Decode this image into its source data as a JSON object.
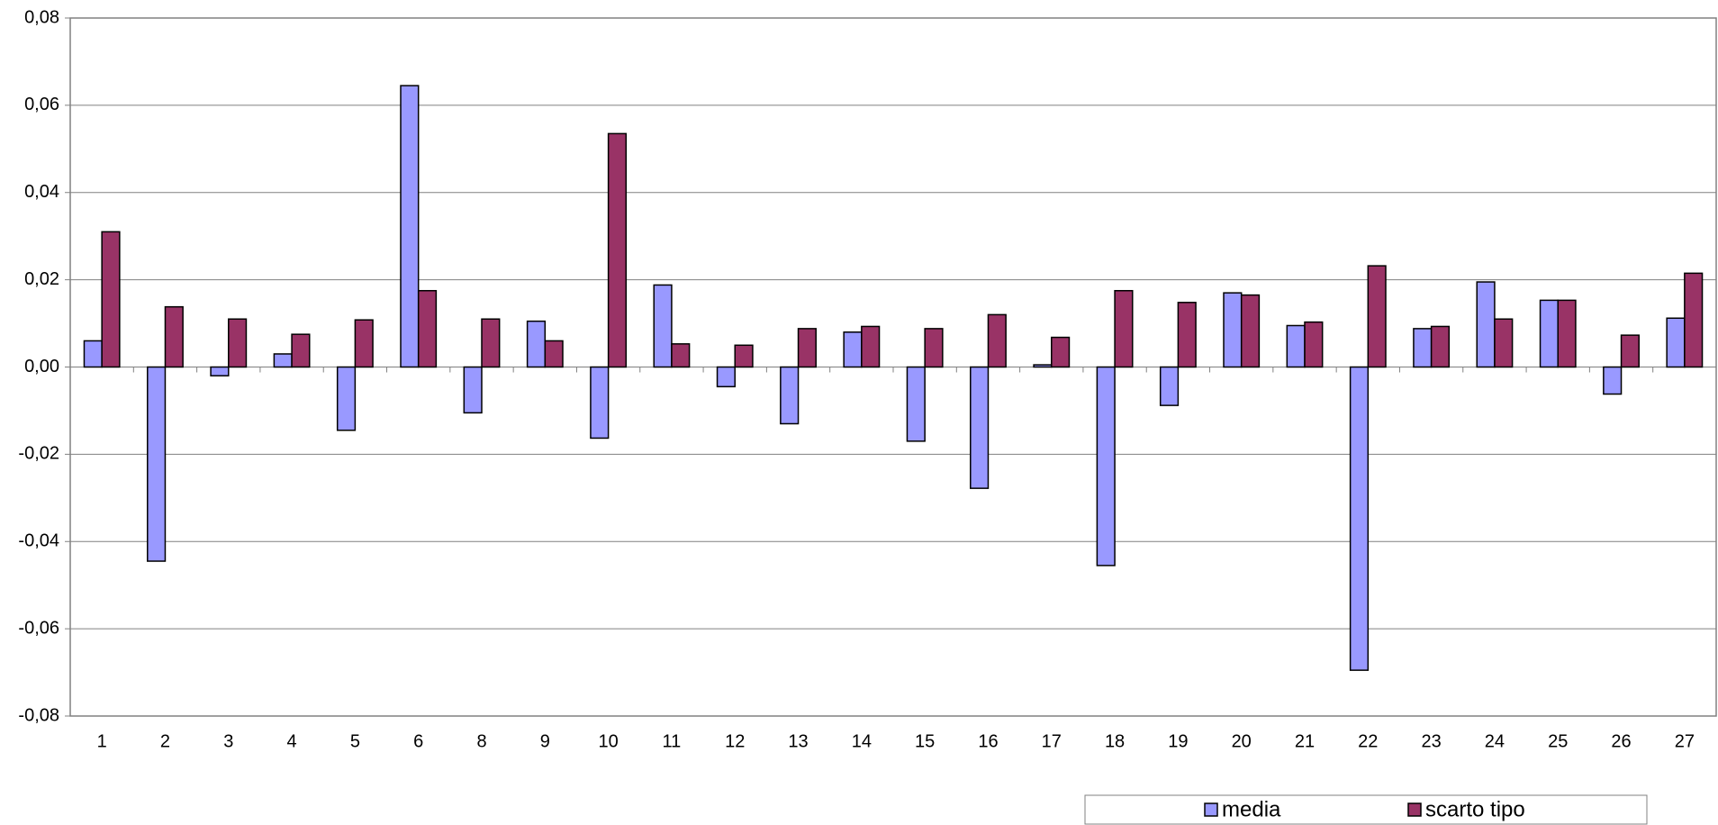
{
  "chart_data": {
    "type": "bar",
    "categories": [
      "1",
      "2",
      "3",
      "4",
      "5",
      "6",
      "8",
      "9",
      "10",
      "11",
      "12",
      "13",
      "14",
      "15",
      "16",
      "17",
      "18",
      "19",
      "20",
      "21",
      "22",
      "23",
      "24",
      "25",
      "26",
      "27"
    ],
    "series": [
      {
        "name": "media",
        "color": "#9999ff",
        "values": [
          0.006,
          -0.0445,
          -0.002,
          0.003,
          -0.0145,
          0.0645,
          -0.0105,
          0.0105,
          -0.0163,
          0.0188,
          -0.0045,
          -0.013,
          0.008,
          -0.017,
          -0.0278,
          0.0005,
          -0.0455,
          -0.0088,
          0.017,
          0.0095,
          -0.0695,
          0.0088,
          0.0195,
          0.0153,
          -0.0062,
          0.0112
        ]
      },
      {
        "name": "scarto tipo",
        "color": "#993366",
        "values": [
          0.031,
          0.0138,
          0.011,
          0.0075,
          0.0108,
          0.0175,
          0.011,
          0.006,
          0.0535,
          0.0053,
          0.005,
          0.0088,
          0.0093,
          0.0088,
          0.012,
          0.0068,
          0.0175,
          0.0148,
          0.0165,
          0.0103,
          0.0232,
          0.0093,
          0.011,
          0.0153,
          0.0073,
          0.0215
        ]
      }
    ],
    "ylim": [
      -0.08,
      0.08
    ],
    "yticks": [
      {
        "value": -0.08,
        "label": "-0,08"
      },
      {
        "value": -0.06,
        "label": "-0,06"
      },
      {
        "value": -0.04,
        "label": "-0,04"
      },
      {
        "value": -0.02,
        "label": "-0,02"
      },
      {
        "value": 0,
        "label": "0,00"
      },
      {
        "value": 0.02,
        "label": "0,02"
      },
      {
        "value": 0.04,
        "label": "0,04"
      },
      {
        "value": 0.06,
        "label": "0,06"
      },
      {
        "value": 0.08,
        "label": "0,08"
      }
    ],
    "grid": true,
    "legend": "bottom-right"
  }
}
